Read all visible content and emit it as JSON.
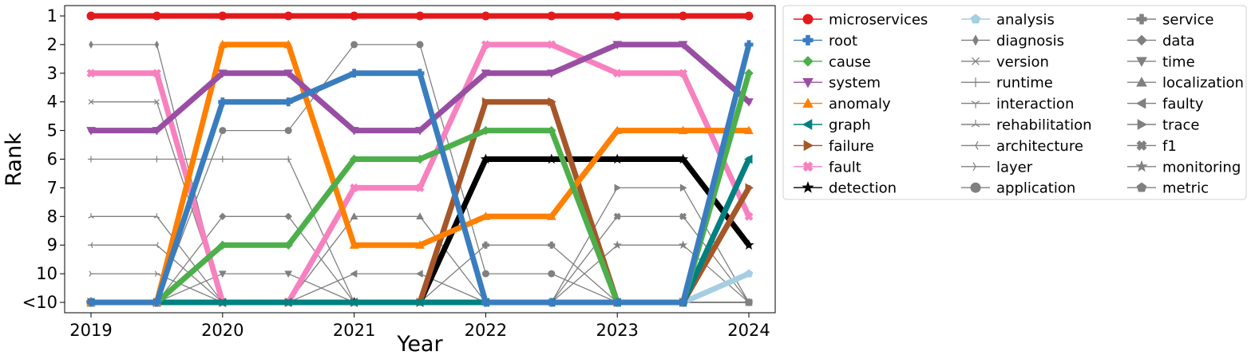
{
  "chart_data": {
    "type": "line",
    "xlabel": "Year",
    "ylabel": "Rank",
    "x_ticks": [
      "2019",
      "2020",
      "2021",
      "2022",
      "2023",
      "2024"
    ],
    "y_ticks": [
      "1",
      "2",
      "3",
      "4",
      "5",
      "6",
      "7",
      "8",
      "9",
      "10",
      "<10"
    ],
    "ylim": [
      1,
      11
    ],
    "y_inverted": true,
    "rank_note": "value 11 represents rank <10",
    "legend_placement": "outside-right",
    "legend_columns": 3,
    "series": [
      {
        "name": "microservices",
        "color": "#e31a1c",
        "marker": "circle",
        "highlight": true,
        "ranks": [
          1,
          1,
          1,
          1,
          1,
          1
        ]
      },
      {
        "name": "root",
        "color": "#3a7dbf",
        "marker": "plus",
        "highlight": true,
        "ranks": [
          11,
          4,
          3,
          11,
          11,
          2
        ]
      },
      {
        "name": "cause",
        "color": "#4daf4a",
        "marker": "diamond",
        "highlight": true,
        "ranks": [
          11,
          9,
          6,
          5,
          11,
          3
        ]
      },
      {
        "name": "system",
        "color": "#984ea3",
        "marker": "triangle-down",
        "highlight": true,
        "ranks": [
          5,
          3,
          5,
          3,
          2,
          4
        ]
      },
      {
        "name": "anomaly",
        "color": "#ff7f00",
        "marker": "triangle-up",
        "highlight": true,
        "ranks": [
          11,
          2,
          9,
          8,
          5,
          5
        ]
      },
      {
        "name": "graph",
        "color": "#008080",
        "marker": "triangle-left",
        "highlight": true,
        "ranks": [
          11,
          11,
          11,
          11,
          11,
          6
        ]
      },
      {
        "name": "failure",
        "color": "#a65628",
        "marker": "triangle-right",
        "highlight": true,
        "ranks": [
          11,
          11,
          11,
          4,
          11,
          7
        ]
      },
      {
        "name": "fault",
        "color": "#f781bf",
        "marker": "x-filled",
        "highlight": true,
        "ranks": [
          3,
          11,
          7,
          2,
          3,
          8
        ]
      },
      {
        "name": "detection",
        "color": "#000000",
        "marker": "star",
        "highlight": true,
        "ranks": [
          11,
          11,
          11,
          6,
          6,
          9
        ]
      },
      {
        "name": "analysis",
        "color": "#a6cee3",
        "marker": "pentagon",
        "highlight": true,
        "ranks": [
          11,
          11,
          11,
          11,
          11,
          10
        ]
      },
      {
        "name": "diagnosis",
        "color": "#808080",
        "marker": "thin-diamond",
        "highlight": false,
        "ranks": [
          2,
          11,
          11,
          11,
          11,
          11
        ]
      },
      {
        "name": "version",
        "color": "#808080",
        "marker": "x",
        "highlight": false,
        "ranks": [
          4,
          11,
          11,
          11,
          11,
          11
        ]
      },
      {
        "name": "runtime",
        "color": "#808080",
        "marker": "plus-thin",
        "highlight": false,
        "ranks": [
          6,
          6,
          11,
          11,
          11,
          11
        ]
      },
      {
        "name": "interaction",
        "color": "#808080",
        "marker": "tri-down",
        "highlight": false,
        "ranks": [
          11,
          11,
          11,
          11,
          11,
          11
        ]
      },
      {
        "name": "rehabilitation",
        "color": "#808080",
        "marker": "tri-up",
        "highlight": false,
        "ranks": [
          8,
          11,
          11,
          11,
          11,
          11
        ]
      },
      {
        "name": "architecture",
        "color": "#808080",
        "marker": "tri-left",
        "highlight": false,
        "ranks": [
          9,
          11,
          11,
          11,
          11,
          11
        ]
      },
      {
        "name": "layer",
        "color": "#808080",
        "marker": "tri-right",
        "highlight": false,
        "ranks": [
          10,
          11,
          11,
          11,
          11,
          11
        ]
      },
      {
        "name": "application",
        "color": "#808080",
        "marker": "circle",
        "highlight": false,
        "ranks": [
          11,
          5,
          2,
          10,
          11,
          11
        ]
      },
      {
        "name": "service",
        "color": "#808080",
        "marker": "plus",
        "highlight": false,
        "ranks": [
          11,
          11,
          11,
          9,
          11,
          11
        ]
      },
      {
        "name": "data",
        "color": "#808080",
        "marker": "diamond",
        "highlight": false,
        "ranks": [
          11,
          8,
          11,
          11,
          11,
          11
        ]
      },
      {
        "name": "time",
        "color": "#808080",
        "marker": "triangle-down",
        "highlight": false,
        "ranks": [
          11,
          10,
          11,
          11,
          11,
          11
        ]
      },
      {
        "name": "localization",
        "color": "#808080",
        "marker": "triangle-up",
        "highlight": false,
        "ranks": [
          11,
          11,
          8,
          11,
          11,
          11
        ]
      },
      {
        "name": "faulty",
        "color": "#808080",
        "marker": "triangle-left",
        "highlight": false,
        "ranks": [
          11,
          11,
          10,
          11,
          11,
          11
        ]
      },
      {
        "name": "trace",
        "color": "#808080",
        "marker": "triangle-right",
        "highlight": false,
        "ranks": [
          11,
          11,
          11,
          11,
          7,
          11
        ]
      },
      {
        "name": "f1",
        "color": "#808080",
        "marker": "x-filled",
        "highlight": false,
        "ranks": [
          11,
          11,
          11,
          11,
          8,
          11
        ]
      },
      {
        "name": "monitoring",
        "color": "#808080",
        "marker": "star",
        "highlight": false,
        "ranks": [
          11,
          11,
          11,
          11,
          9,
          11
        ]
      },
      {
        "name": "metric",
        "color": "#808080",
        "marker": "pentagon",
        "highlight": false,
        "ranks": [
          11,
          11,
          11,
          11,
          11,
          11
        ]
      }
    ]
  }
}
